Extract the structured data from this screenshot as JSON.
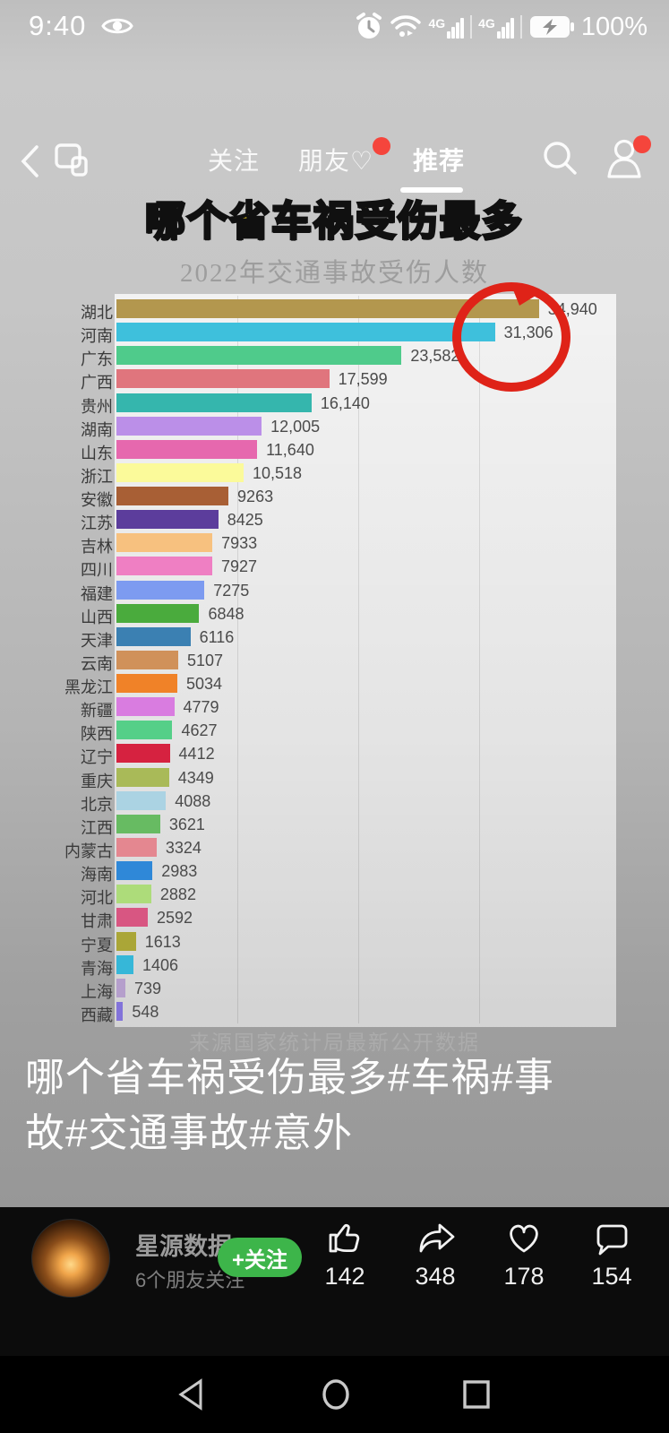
{
  "colors": {
    "accent_green": "#3db54a",
    "badge_red": "#f5453c",
    "annotation_red": "#df2318",
    "title_yellow": "#f8d824"
  },
  "status_bar": {
    "time": "9:40",
    "battery": "100%",
    "icons": [
      "eye-icon",
      "alarm-icon",
      "wifi-icon",
      "signal-4g-icon",
      "signal-4g-icon",
      "battery-charging-icon"
    ],
    "network_label": "4G"
  },
  "top_nav": {
    "tabs": [
      {
        "label": "关注"
      },
      {
        "label": "朋友♡",
        "badge": true
      },
      {
        "label": "推荐",
        "active": true
      }
    ]
  },
  "chart_data": {
    "type": "bar",
    "orientation": "horizontal",
    "title": "哪个省车祸受伤最多",
    "subtitle": "2022年交通事故受伤人数",
    "source": "来源国家统计局最新公开数据",
    "xlim": [
      0,
      36000
    ],
    "gridlines": [
      10000,
      20000,
      30000
    ],
    "grid": true,
    "annotation": {
      "type": "hand-drawn-red-circle",
      "target_category": "河南",
      "target_value": "31,306"
    },
    "categories": [
      "湖北",
      "河南",
      "广东",
      "广西",
      "贵州",
      "湖南",
      "山东",
      "浙江",
      "安徽",
      "江苏",
      "吉林",
      "四川",
      "福建",
      "山西",
      "天津",
      "云南",
      "黑龙江",
      "新疆",
      "陕西",
      "辽宁",
      "重庆",
      "北京",
      "江西",
      "内蒙古",
      "海南",
      "河北",
      "甘肃",
      "宁夏",
      "青海",
      "上海",
      "西藏"
    ],
    "values": [
      34940,
      31306,
      23582,
      17599,
      16140,
      12005,
      11640,
      10518,
      9263,
      8425,
      7933,
      7927,
      7275,
      6848,
      6116,
      5107,
      5034,
      4779,
      4627,
      4412,
      4349,
      4088,
      3621,
      3324,
      2983,
      2882,
      2592,
      1613,
      1406,
      739,
      548
    ],
    "value_labels": [
      "34,940",
      "31,306",
      "23,582",
      "17,599",
      "16,140",
      "12,005",
      "11,640",
      "10,518",
      "9263",
      "8425",
      "7933",
      "7927",
      "7275",
      "6848",
      "6116",
      "5107",
      "5034",
      "4779",
      "4627",
      "4412",
      "4349",
      "4088",
      "3621",
      "3324",
      "2983",
      "2882",
      "2592",
      "1613",
      "1406",
      "739",
      "548"
    ],
    "bar_colors": [
      "#b3974e",
      "#3ec0dc",
      "#4fcb8b",
      "#e0757d",
      "#35b6ad",
      "#bb8fe8",
      "#e668ae",
      "#fbfa9a",
      "#a85f35",
      "#5c3d9c",
      "#f7c17f",
      "#ef7fc3",
      "#7d9bf0",
      "#4aab3d",
      "#3b80b2",
      "#d0915a",
      "#f08228",
      "#d97ce0",
      "#55cf88",
      "#d62240",
      "#a9ba58",
      "#abd3e3",
      "#67bb62",
      "#e48790",
      "#2f88d8",
      "#addc7a",
      "#d85682",
      "#aaa637",
      "#36b7d8",
      "#b59fcc",
      "#8273da"
    ]
  },
  "caption": {
    "lines": [
      "哪个省车祸受伤最多#车祸#事",
      "故#交通事故#意外"
    ]
  },
  "publisher": {
    "name": "星源数据",
    "followers": "6个朋友关注",
    "follow_button": "+关注"
  },
  "actions": [
    {
      "name": "like",
      "icon": "thumbs-up-icon",
      "count": "142"
    },
    {
      "name": "share",
      "icon": "share-icon",
      "count": "348"
    },
    {
      "name": "favorite",
      "icon": "heart-icon",
      "count": "178"
    },
    {
      "name": "comment",
      "icon": "comment-icon",
      "count": "154"
    }
  ]
}
